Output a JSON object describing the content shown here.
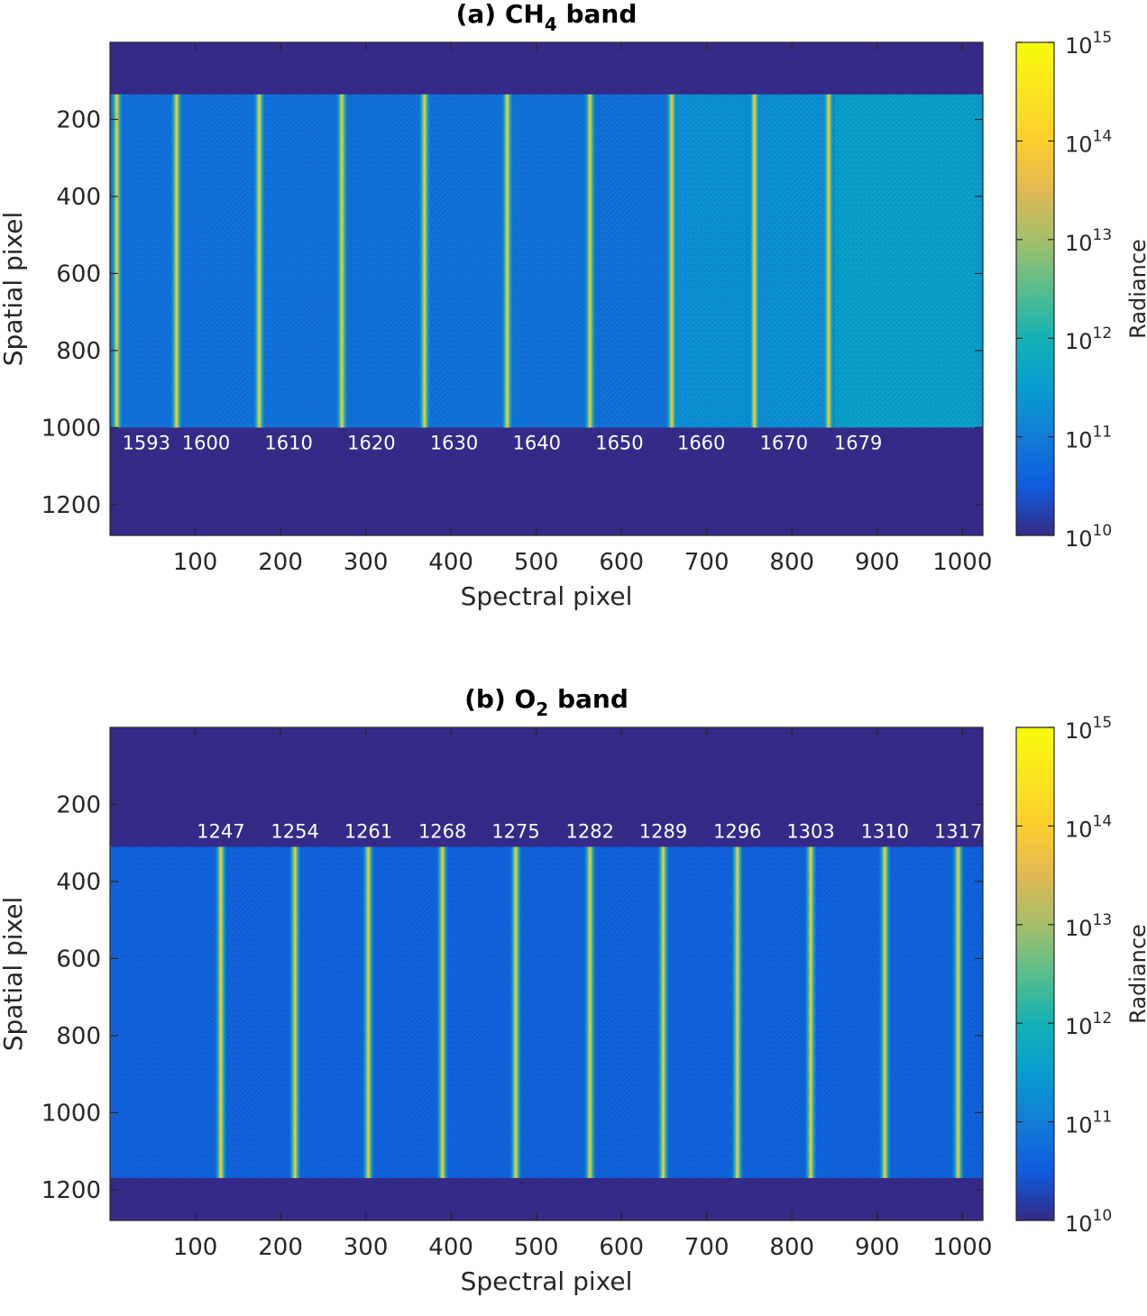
{
  "chart_data": [
    {
      "type": "heatmap",
      "panel": "a",
      "title_prefix": "(a) CH",
      "title_subscript": "4",
      "title_suffix": " band",
      "xlabel": "Spectral pixel",
      "ylabel": "Spatial pixel",
      "xlim": [
        0,
        1024
      ],
      "ylim": [
        1280,
        0
      ],
      "y_reversed": true,
      "xticks": [
        100,
        200,
        300,
        400,
        500,
        600,
        700,
        800,
        900,
        1000
      ],
      "yticks": [
        200,
        400,
        600,
        800,
        1000,
        1200
      ],
      "illuminated_rows": [
        135,
        1000
      ],
      "background_radiance": 10000000000.0,
      "illuminated_level": [
        {
          "x": [
            0,
            664
          ],
          "radiance": 70000000000.0
        },
        {
          "x": [
            664,
            850
          ],
          "radiance": 200000000000.0
        },
        {
          "x": [
            850,
            1024
          ],
          "radiance": 400000000000.0
        }
      ],
      "lines": [
        {
          "x": 8,
          "label": "1593"
        },
        {
          "x": 78,
          "label": "1600"
        },
        {
          "x": 175,
          "label": "1610"
        },
        {
          "x": 272,
          "label": "1620"
        },
        {
          "x": 369,
          "label": "1630"
        },
        {
          "x": 466,
          "label": "1640"
        },
        {
          "x": 563,
          "label": "1650"
        },
        {
          "x": 659,
          "label": "1660"
        },
        {
          "x": 756,
          "label": "1670"
        },
        {
          "x": 843,
          "label": "1679"
        }
      ],
      "line_label_position": "below-illuminated-region",
      "colorbar": {
        "label": "Radiance",
        "scale": "log",
        "range": [
          10000000000.0,
          1000000000000000.0
        ],
        "ticks": [
          {
            "base": "10",
            "exp": "10"
          },
          {
            "base": "10",
            "exp": "11"
          },
          {
            "base": "10",
            "exp": "12"
          },
          {
            "base": "10",
            "exp": "13"
          },
          {
            "base": "10",
            "exp": "14"
          },
          {
            "base": "10",
            "exp": "15"
          }
        ],
        "colormap": "parula"
      }
    },
    {
      "type": "heatmap",
      "panel": "b",
      "title_prefix": "(b) O",
      "title_subscript": "2",
      "title_suffix": " band",
      "xlabel": "Spectral pixel",
      "ylabel": "Spatial pixel",
      "xlim": [
        0,
        1024
      ],
      "ylim": [
        1280,
        0
      ],
      "y_reversed": true,
      "xticks": [
        100,
        200,
        300,
        400,
        500,
        600,
        700,
        800,
        900,
        1000
      ],
      "yticks": [
        200,
        400,
        600,
        800,
        1000,
        1200
      ],
      "illuminated_rows": [
        310,
        1170
      ],
      "background_radiance": 10000000000.0,
      "illuminated_level": [
        {
          "x": [
            0,
            1024
          ],
          "radiance": 40000000000.0
        }
      ],
      "lines": [
        {
          "x": 130,
          "label": "1247"
        },
        {
          "x": 217,
          "label": "1254"
        },
        {
          "x": 303,
          "label": "1261"
        },
        {
          "x": 390,
          "label": "1268"
        },
        {
          "x": 476,
          "label": "1275"
        },
        {
          "x": 563,
          "label": "1282"
        },
        {
          "x": 649,
          "label": "1289"
        },
        {
          "x": 736,
          "label": "1296"
        },
        {
          "x": 822,
          "label": "1303"
        },
        {
          "x": 909,
          "label": "1310"
        },
        {
          "x": 995,
          "label": "1317"
        }
      ],
      "line_label_position": "above-illuminated-region",
      "colorbar": {
        "label": "Radiance",
        "scale": "log",
        "range": [
          10000000000.0,
          1000000000000000.0
        ],
        "ticks": [
          {
            "base": "10",
            "exp": "10"
          },
          {
            "base": "10",
            "exp": "11"
          },
          {
            "base": "10",
            "exp": "12"
          },
          {
            "base": "10",
            "exp": "13"
          },
          {
            "base": "10",
            "exp": "14"
          },
          {
            "base": "10",
            "exp": "15"
          }
        ],
        "colormap": "parula"
      }
    }
  ]
}
